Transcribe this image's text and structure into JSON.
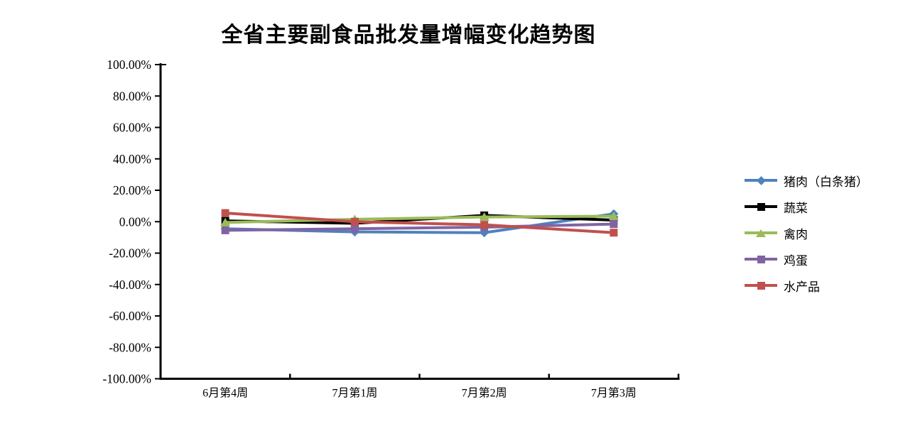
{
  "chart_data": {
    "type": "line",
    "title": "全省主要副食品批发量增幅变化趋势图",
    "categories": [
      "6月第4周",
      "7月第1周",
      "7月第2周",
      "7月第3周"
    ],
    "series": [
      {
        "name": "猪肉（白条猪）",
        "color": "#4F81BD",
        "marker": "diamond",
        "values": [
          -4.5,
          -6.5,
          -7.0,
          5.0
        ]
      },
      {
        "name": "蔬菜",
        "color": "#000000",
        "marker": "square",
        "values": [
          0.5,
          -1.0,
          4.0,
          1.0
        ]
      },
      {
        "name": "禽肉",
        "color": "#9BBB59",
        "marker": "triangle",
        "values": [
          -0.5,
          1.5,
          3.0,
          3.5
        ]
      },
      {
        "name": "鸡蛋",
        "color": "#8064A2",
        "marker": "square",
        "values": [
          -5.5,
          -4.5,
          -3.5,
          -1.5
        ]
      },
      {
        "name": "水产品",
        "color": "#C0504D",
        "marker": "square",
        "values": [
          5.5,
          0.0,
          -2.0,
          -7.0
        ]
      }
    ],
    "ylim": [
      -100,
      100
    ],
    "ytick_step": 20,
    "ytick_labels": [
      "100.00%",
      "80.00%",
      "60.00%",
      "40.00%",
      "20.00%",
      "0.00%",
      "-20.00%",
      "-40.00%",
      "-60.00%",
      "-80.00%",
      "-100.00%"
    ],
    "xlabel": "",
    "ylabel": "",
    "grid": "off",
    "legend_position": "right",
    "axis_color": "#000000",
    "background_color": "#FFFFFF"
  }
}
